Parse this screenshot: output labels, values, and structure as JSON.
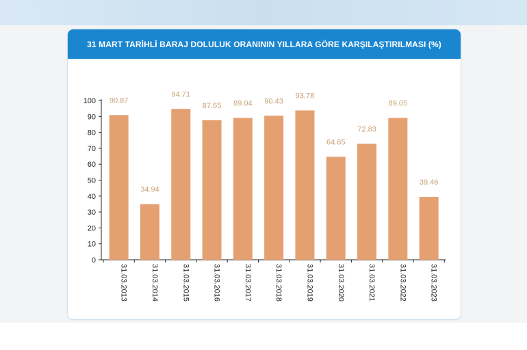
{
  "page": {
    "title": "31 MART TARİHLİ BARAJ DOLULUK ORANININ YILLARA GÖRE KARŞILAŞTIRILMASI (%)"
  },
  "colors": {
    "header": "#1a86d0",
    "bar": "#e4a070",
    "value_label": "#c8a276"
  },
  "chart_data": {
    "type": "bar",
    "title": "31 MART TARİHLİ BARAJ DOLULUK ORANININ YILLARA GÖRE KARŞILAŞTIRILMASI (%)",
    "categories": [
      "31.03.2013",
      "31.03.2014",
      "31.03.2015",
      "31.03.2016",
      "31.03.2017",
      "31.03.2018",
      "31.03.2019",
      "31.03.2020",
      "31.03.2021",
      "31.03.2022",
      "31.03.2023"
    ],
    "values": [
      90.87,
      34.94,
      94.71,
      87.65,
      89.04,
      90.43,
      93.78,
      64.65,
      72.83,
      89.05,
      39.46
    ],
    "value_labels": [
      "90.87",
      "34.94",
      "94.71",
      "87.65",
      "89.04",
      "90.43",
      "93.78",
      "64.65",
      "72.83",
      "89.05",
      "39.46"
    ],
    "yticks": [
      0,
      10,
      20,
      30,
      40,
      50,
      60,
      70,
      80,
      90,
      100
    ],
    "ylim": [
      0,
      100
    ],
    "xlabel": "",
    "ylabel": "",
    "grid": false,
    "legend": "none"
  }
}
